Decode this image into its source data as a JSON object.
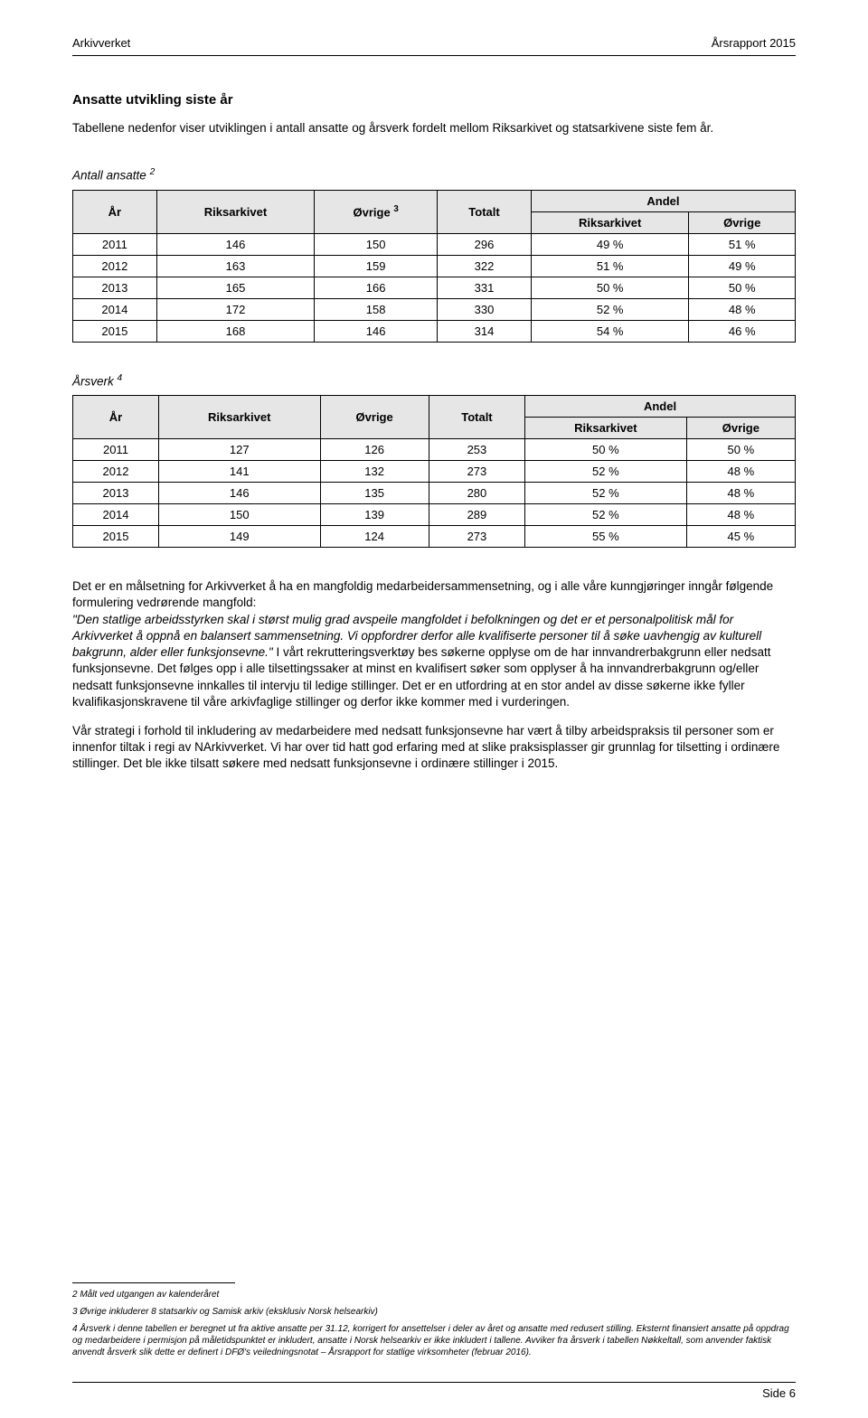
{
  "header": {
    "left": "Arkivverket",
    "right": "Årsrapport 2015"
  },
  "section": {
    "title": "Ansatte utvikling siste år",
    "intro": "Tabellene nedenfor viser utviklingen i antall ansatte og årsverk fordelt mellom Riksarkivet og statsarkivene siste fem år."
  },
  "table1": {
    "title_pre": "Antall ansatte ",
    "title_sup": "2",
    "h_ar": "År",
    "h_riks": "Riksarkivet",
    "h_ovrige": "Øvrige ",
    "h_ovrige_sup": "3",
    "h_totalt": "Totalt",
    "h_andel": "Andel",
    "h_andel_riks": "Riksarkivet",
    "h_andel_ovrige": "Øvrige",
    "rows": [
      {
        "c0": "2011",
        "c1": "146",
        "c2": "150",
        "c3": "296",
        "c4": "49 %",
        "c5": "51 %"
      },
      {
        "c0": "2012",
        "c1": "163",
        "c2": "159",
        "c3": "322",
        "c4": "51 %",
        "c5": "49 %"
      },
      {
        "c0": "2013",
        "c1": "165",
        "c2": "166",
        "c3": "331",
        "c4": "50 %",
        "c5": "50 %"
      },
      {
        "c0": "2014",
        "c1": "172",
        "c2": "158",
        "c3": "330",
        "c4": "52 %",
        "c5": "48 %"
      },
      {
        "c0": "2015",
        "c1": "168",
        "c2": "146",
        "c3": "314",
        "c4": "54 %",
        "c5": "46 %"
      }
    ]
  },
  "table2": {
    "title_pre": "Årsverk ",
    "title_sup": "4",
    "h_ar": "År",
    "h_riks": "Riksarkivet",
    "h_ovrige": "Øvrige",
    "h_totalt": "Totalt",
    "h_andel": "Andel",
    "h_andel_riks": "Riksarkivet",
    "h_andel_ovrige": "Øvrige",
    "rows": [
      {
        "c0": "2011",
        "c1": "127",
        "c2": "126",
        "c3": "253",
        "c4": "50 %",
        "c5": "50 %"
      },
      {
        "c0": "2012",
        "c1": "141",
        "c2": "132",
        "c3": "273",
        "c4": "52 %",
        "c5": "48 %"
      },
      {
        "c0": "2013",
        "c1": "146",
        "c2": "135",
        "c3": "280",
        "c4": "52 %",
        "c5": "48 %"
      },
      {
        "c0": "2014",
        "c1": "150",
        "c2": "139",
        "c3": "289",
        "c4": "52 %",
        "c5": "48 %"
      },
      {
        "c0": "2015",
        "c1": "149",
        "c2": "124",
        "c3": "273",
        "c4": "55 %",
        "c5": "45 %"
      }
    ]
  },
  "para1_pre": "Det er en målsetning for Arkivverket å ha en mangfoldig medarbeidersammensetning, og i alle våre kunngjøringer inngår følgende formulering vedrørende mangfold:",
  "para1_quote": "\"Den statlige arbeidsstyrken skal i størst mulig grad avspeile mangfoldet i befolkningen og det er et personalpolitisk mål for Arkivverket å oppnå en balansert sammensetning. Vi oppfordrer derfor alle kvalifiserte personer til å søke uavhengig av kulturell bakgrunn, alder eller funksjonsevne.\"",
  "para1_post": " I vårt rekrutteringsverktøy bes søkerne opplyse om de har innvandrerbakgrunn eller nedsatt funksjonsevne. Det følges opp i alle tilsettingssaker at minst en kvalifisert søker som opplyser å ha innvandrerbakgrunn og/eller nedsatt funksjonsevne innkalles til intervju til ledige stillinger. Det er en utfordring at en stor andel av disse søkerne ikke fyller kvalifikasjonskravene til våre arkivfaglige stillinger og derfor ikke kommer med i vurderingen.",
  "para2": "Vår strategi i forhold til inkludering av medarbeidere med nedsatt funksjonsevne har vært å tilby arbeidspraksis til personer som er innenfor tiltak i regi av NArkivverket. Vi har over tid hatt god erfaring med at slike praksisplasser gir grunnlag for tilsetting i ordinære stillinger. Det ble ikke tilsatt søkere med nedsatt funksjonsevne i ordinære stillinger i 2015.",
  "footnotes": {
    "f2": "2 Målt ved utgangen av kalenderåret",
    "f3": "3 Øvrige inkluderer 8 statsarkiv og Samisk arkiv (eksklusiv Norsk helsearkiv)",
    "f4": "4 Årsverk i denne tabellen er beregnet ut fra aktive ansatte per 31.12, korrigert for ansettelser i deler av året og ansatte med redusert stilling. Eksternt finansiert ansatte på oppdrag og medarbeidere i permisjon på måletidspunktet er inkludert, ansatte i Norsk helsearkiv er ikke inkludert i tallene. Avviker fra årsverk i tabellen Nøkkeltall, som anvender faktisk anvendt årsverk slik dette er definert i DFØ's veiledningsnotat – Årsrapport for statlige virksomheter (februar 2016)."
  },
  "footer": "Side 6"
}
